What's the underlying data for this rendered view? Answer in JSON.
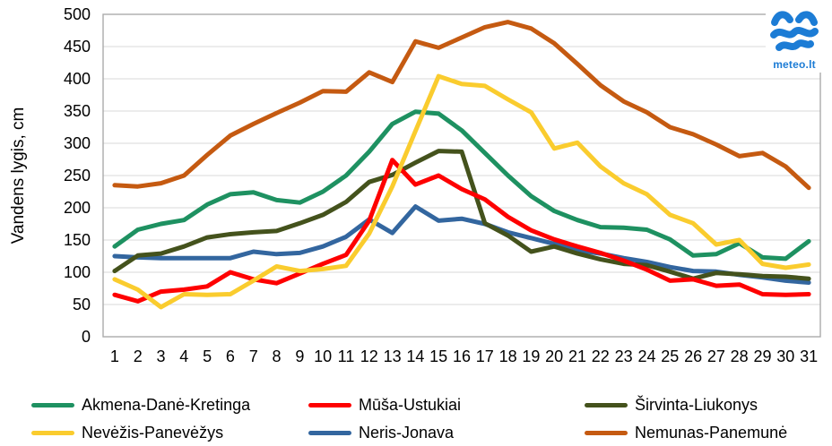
{
  "chart_data": {
    "type": "line",
    "title": "",
    "ylabel": "Vandens lygis, cm",
    "ylim": [
      0,
      500
    ],
    "ytick_step": 50,
    "grid": true,
    "legend_position": "bottom",
    "x": [
      1,
      2,
      3,
      4,
      5,
      6,
      7,
      8,
      9,
      10,
      11,
      12,
      13,
      14,
      15,
      16,
      17,
      18,
      19,
      20,
      21,
      22,
      23,
      24,
      25,
      26,
      27,
      28,
      29,
      30,
      31
    ],
    "series": [
      {
        "name": "Akmena-Danė-Kretinga",
        "color": "#1E9161",
        "values": [
          140,
          166,
          175,
          181,
          205,
          221,
          224,
          212,
          208,
          225,
          250,
          287,
          330,
          349,
          346,
          320,
          285,
          250,
          218,
          195,
          181,
          170,
          169,
          166,
          151,
          126,
          128,
          145,
          123,
          121,
          148
        ]
      },
      {
        "name": "Mūša-Ustukiai",
        "color": "#FE0000",
        "values": [
          65,
          55,
          70,
          73,
          78,
          100,
          89,
          83,
          98,
          113,
          127,
          180,
          274,
          236,
          250,
          229,
          213,
          186,
          165,
          151,
          140,
          130,
          118,
          104,
          87,
          89,
          79,
          81,
          66,
          65,
          66
        ]
      },
      {
        "name": "Širvinta-Liukonys",
        "color": "#44521C",
        "values": [
          102,
          126,
          129,
          140,
          154,
          159,
          162,
          164,
          176,
          189,
          209,
          240,
          251,
          270,
          288,
          287,
          176,
          157,
          132,
          140,
          129,
          120,
          113,
          111,
          101,
          90,
          99,
          97,
          94,
          93,
          90
        ]
      },
      {
        "name": "Nevėžis-Panevėžys",
        "color": "#FACC2E",
        "values": [
          89,
          73,
          46,
          66,
          65,
          66,
          87,
          109,
          102,
          105,
          110,
          160,
          233,
          319,
          404,
          392,
          389,
          368,
          348,
          292,
          301,
          264,
          238,
          221,
          189,
          176,
          143,
          150,
          113,
          107,
          112
        ]
      },
      {
        "name": "Neris-Jonava",
        "color": "#33669F",
        "values": [
          125,
          123,
          122,
          122,
          122,
          122,
          132,
          128,
          130,
          140,
          155,
          182,
          161,
          202,
          180,
          183,
          175,
          162,
          153,
          144,
          134,
          129,
          122,
          116,
          108,
          102,
          101,
          96,
          92,
          87,
          84
        ]
      },
      {
        "name": "Nemunas-Panemunė",
        "color": "#C55A11",
        "values": [
          235,
          233,
          238,
          250,
          282,
          312,
          330,
          347,
          363,
          381,
          380,
          410,
          395,
          458,
          448,
          464,
          480,
          488,
          478,
          455,
          423,
          390,
          365,
          348,
          325,
          314,
          298,
          280,
          285,
          264,
          231
        ]
      }
    ],
    "draw_order": [
      0,
      4,
      2,
      1,
      3,
      5
    ]
  },
  "logo": {
    "text": "meteo.lt",
    "color": "#1C7CD5"
  }
}
